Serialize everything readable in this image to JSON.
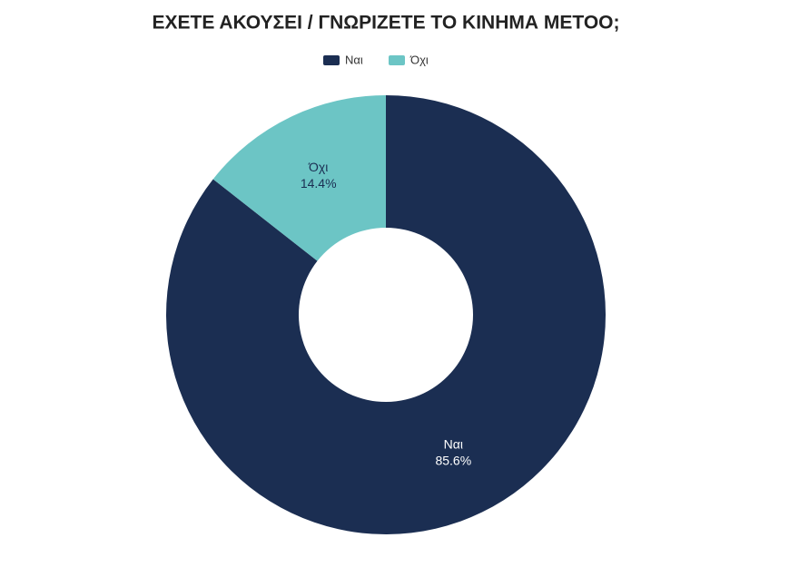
{
  "chart_data": {
    "type": "donut",
    "title": "ΕΧΕΤΕ ΑΚΟΥΣΕΙ / ΓΝΩΡΙΖΕΤΕ ΤΟ ΚΙΝΗΜΑ METOO;",
    "categories": [
      "Ναι",
      "Όχι"
    ],
    "values": [
      85.6,
      14.4
    ],
    "value_labels": [
      "85.6%",
      "14.4%"
    ],
    "colors": [
      "#1b2e52",
      "#6cc5c5"
    ],
    "legend": "top"
  }
}
